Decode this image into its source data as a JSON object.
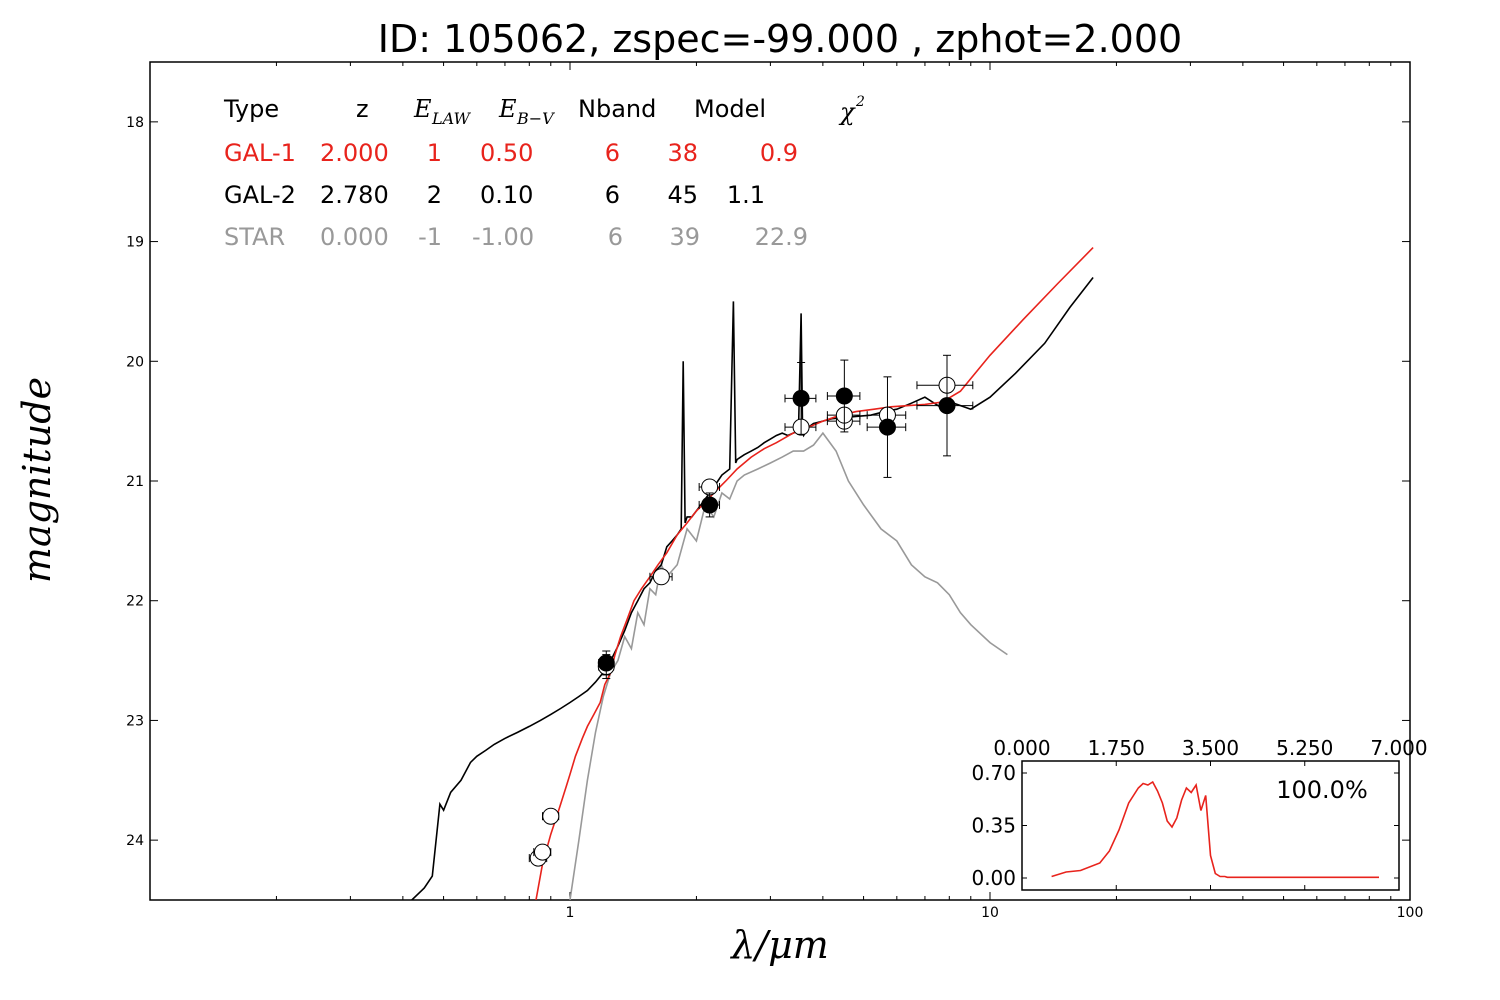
{
  "chart_data": [
    {
      "type": "line",
      "title": "ID:  105062, zspec=-99.000 , zphot=2.000",
      "xlabel": "λ/μm",
      "ylabel": "magnitude",
      "xscale": "log",
      "xlim": [
        0.1,
        100
      ],
      "ylim": [
        24.5,
        17.5
      ],
      "x_tick_labels": [
        "1",
        "10",
        "100"
      ],
      "y_tick_labels": [
        "18",
        "19",
        "20",
        "21",
        "22",
        "23",
        "24"
      ],
      "grid": false,
      "summary_table": {
        "headers": {
          "type": "Type",
          "z": "z",
          "elaw": "E",
          "elaw_sub": "LAW",
          "ebv": "E",
          "ebv_sub": "B−V",
          "nband": "Nband",
          "model": "Model",
          "chi": "χ",
          "chi_sup": "2"
        },
        "rows": [
          {
            "type": "GAL-1",
            "z": "2.000",
            "elaw": "1",
            "ebv": "0.50",
            "nband": "6",
            "model": "38",
            "chi2": "0.9",
            "color": "#e8231c"
          },
          {
            "type": "GAL-2",
            "z": "2.780",
            "elaw": "2",
            "ebv": "0.10",
            "nband": "6",
            "model": "45",
            "chi2": "1.1",
            "color": "#000000"
          },
          {
            "type": "STAR",
            "z": "0.000",
            "elaw": "-1",
            "ebv": "-1.00",
            "nband": "6",
            "model": "39",
            "chi2": "22.9",
            "color": "#999999"
          }
        ]
      },
      "series": [
        {
          "color": "#e8231c",
          "x": [
            0.83,
            0.86,
            0.9,
            0.94,
            0.98,
            1.0,
            1.03,
            1.07,
            1.1,
            1.14,
            1.18,
            1.21,
            1.25,
            1.28,
            1.32,
            1.37,
            1.42,
            1.48,
            1.55,
            1.62,
            1.7,
            1.8,
            1.9,
            2.0,
            2.1,
            2.2,
            2.35,
            2.5,
            2.7,
            2.9,
            3.1,
            3.4,
            3.7,
            4.0,
            4.4,
            4.8,
            5.3,
            5.8,
            6.4,
            7.0,
            7.7,
            8.5,
            10.0,
            12.0,
            14.5,
            17.6
          ],
          "y": [
            24.5,
            24.2,
            23.95,
            23.75,
            23.55,
            23.45,
            23.3,
            23.15,
            23.05,
            22.95,
            22.85,
            22.7,
            22.6,
            22.45,
            22.3,
            22.15,
            22.0,
            21.9,
            21.8,
            21.7,
            21.6,
            21.45,
            21.35,
            21.25,
            21.18,
            21.1,
            21.0,
            20.9,
            20.8,
            20.73,
            20.68,
            20.6,
            20.55,
            20.5,
            20.45,
            20.42,
            20.4,
            20.38,
            20.37,
            20.36,
            20.34,
            20.25,
            19.95,
            19.65,
            19.35,
            19.05
          ]
        },
        {
          "color": "#000000",
          "x": [
            0.42,
            0.45,
            0.47,
            0.49,
            0.5,
            0.52,
            0.55,
            0.58,
            0.6,
            0.63,
            0.66,
            0.7,
            0.75,
            0.8,
            0.85,
            0.9,
            0.95,
            1.0,
            1.05,
            1.1,
            1.15,
            1.2,
            1.25,
            1.3,
            1.35,
            1.4,
            1.45,
            1.5,
            1.55,
            1.6,
            1.65,
            1.7,
            1.75,
            1.8,
            1.84,
            1.86,
            1.88,
            1.9,
            1.95,
            2.0,
            2.05,
            2.1,
            2.2,
            2.3,
            2.4,
            2.45,
            2.48,
            2.5,
            2.55,
            2.6,
            2.7,
            2.8,
            2.9,
            3.0,
            3.1,
            3.2,
            3.3,
            3.4,
            3.5,
            3.55,
            3.58,
            3.6,
            3.65,
            3.7,
            3.8,
            4.0,
            4.2,
            4.5,
            4.8,
            5.2,
            5.6,
            6.0,
            6.5,
            7.0,
            7.6,
            8.2,
            9.0,
            10.0,
            11.5,
            13.5,
            15.5,
            17.6
          ],
          "y": [
            24.5,
            24.4,
            24.3,
            23.7,
            23.75,
            23.6,
            23.5,
            23.35,
            23.3,
            23.25,
            23.2,
            23.15,
            23.1,
            23.05,
            23.0,
            22.95,
            22.9,
            22.85,
            22.8,
            22.75,
            22.68,
            22.6,
            22.5,
            22.38,
            22.25,
            22.1,
            22.0,
            21.9,
            21.85,
            21.75,
            21.7,
            21.55,
            21.5,
            21.45,
            21.4,
            20.0,
            21.35,
            21.3,
            21.3,
            21.25,
            21.2,
            21.15,
            21.05,
            20.95,
            20.9,
            19.5,
            20.85,
            20.82,
            20.8,
            20.78,
            20.75,
            20.72,
            20.68,
            20.65,
            20.62,
            20.6,
            20.62,
            20.6,
            20.58,
            19.6,
            20.6,
            20.62,
            20.58,
            20.55,
            20.52,
            20.5,
            20.48,
            20.47,
            20.46,
            20.45,
            20.42,
            20.4,
            20.35,
            20.3,
            20.38,
            20.35,
            20.4,
            20.3,
            20.1,
            19.85,
            19.55,
            19.3
          ]
        },
        {
          "color": "#999999",
          "x": [
            1.0,
            1.05,
            1.1,
            1.15,
            1.2,
            1.25,
            1.3,
            1.35,
            1.4,
            1.45,
            1.5,
            1.55,
            1.6,
            1.65,
            1.7,
            1.8,
            1.9,
            2.0,
            2.1,
            2.2,
            2.3,
            2.4,
            2.5,
            2.6,
            2.8,
            3.0,
            3.2,
            3.4,
            3.6,
            3.8,
            4.0,
            4.3,
            4.6,
            5.0,
            5.5,
            6.0,
            6.5,
            7.0,
            7.5,
            8.0,
            8.5,
            9.0,
            10.0,
            11.0
          ],
          "y": [
            24.5,
            24.0,
            23.5,
            23.1,
            22.8,
            22.6,
            22.5,
            22.3,
            22.4,
            22.1,
            22.2,
            21.9,
            21.95,
            21.7,
            21.8,
            21.7,
            21.4,
            21.5,
            21.2,
            21.3,
            21.1,
            21.15,
            21.0,
            20.95,
            20.9,
            20.85,
            20.8,
            20.75,
            20.75,
            20.7,
            20.6,
            20.75,
            21.0,
            21.2,
            21.4,
            21.5,
            21.7,
            21.8,
            21.85,
            21.95,
            22.1,
            22.2,
            22.35,
            22.45
          ]
        }
      ],
      "observed_points": [
        {
          "x": 0.8,
          "y": 24.6,
          "xerr": 0.03,
          "yerr": 0.0,
          "style": "open"
        },
        {
          "x": 0.84,
          "y": 24.15,
          "xerr": 0.04,
          "yerr": 0.0,
          "style": "open"
        },
        {
          "x": 0.86,
          "y": 24.1,
          "xerr": 0.04,
          "yerr": 0.0,
          "style": "open"
        },
        {
          "x": 0.9,
          "y": 23.8,
          "xerr": 0.04,
          "yerr": 0.0,
          "style": "open"
        },
        {
          "x": 1.22,
          "y": 22.55,
          "xerr": 0.05,
          "yerr": 0.1,
          "style": "open"
        },
        {
          "x": 1.22,
          "y": 22.52,
          "xerr": 0.05,
          "yerr": 0.1,
          "style": "filled"
        },
        {
          "x": 1.65,
          "y": 21.8,
          "xerr": 0.1,
          "yerr": 0.0,
          "style": "open"
        },
        {
          "x": 2.15,
          "y": 21.05,
          "xerr": 0.12,
          "yerr": 0.0,
          "style": "open"
        },
        {
          "x": 2.15,
          "y": 21.2,
          "xerr": 0.12,
          "yerr": 0.1,
          "style": "filled"
        },
        {
          "x": 3.55,
          "y": 20.55,
          "xerr": 0.3,
          "yerr": 0.0,
          "style": "open"
        },
        {
          "x": 3.55,
          "y": 20.31,
          "xerr": 0.3,
          "yerr": 0.3,
          "style": "filled"
        },
        {
          "x": 4.5,
          "y": 20.5,
          "xerr": 0.4,
          "yerr": 0.0,
          "style": "open"
        },
        {
          "x": 4.5,
          "y": 20.45,
          "xerr": 0.4,
          "yerr": 0.0,
          "style": "open"
        },
        {
          "x": 4.5,
          "y": 20.29,
          "xerr": 0.4,
          "yerr": 0.3,
          "style": "filled"
        },
        {
          "x": 5.7,
          "y": 20.45,
          "xerr": 0.6,
          "yerr": 0.0,
          "style": "open"
        },
        {
          "x": 5.7,
          "y": 20.55,
          "xerr": 0.6,
          "yerr": 0.42,
          "style": "filled"
        },
        {
          "x": 7.9,
          "y": 20.2,
          "xerr": 1.2,
          "yerr": 0.0,
          "style": "open"
        },
        {
          "x": 7.9,
          "y": 20.37,
          "xerr": 1.2,
          "yerr": 0.42,
          "style": "filled"
        }
      ]
    },
    {
      "type": "line",
      "title": "",
      "xlim": [
        0,
        7
      ],
      "ylim": [
        0,
        0.7
      ],
      "x_tick_labels": [
        "0.000",
        "1.750",
        "3.500",
        "5.250",
        "7.000"
      ],
      "y_tick_labels": [
        "0.70",
        "0.35",
        "0.00"
      ],
      "annotation": "100.0%",
      "series": [
        {
          "color": "#e8231c",
          "x": [
            0.2,
            0.5,
            0.8,
            1.2,
            1.4,
            1.6,
            1.8,
            2.0,
            2.1,
            2.2,
            2.3,
            2.4,
            2.5,
            2.6,
            2.7,
            2.8,
            2.9,
            3.0,
            3.1,
            3.2,
            3.3,
            3.4,
            3.5,
            3.6,
            3.7,
            3.8,
            3.85,
            4.0,
            5.0,
            6.0,
            7.0
          ],
          "y": [
            0.01,
            0.04,
            0.05,
            0.1,
            0.18,
            0.32,
            0.5,
            0.6,
            0.63,
            0.62,
            0.64,
            0.58,
            0.5,
            0.38,
            0.34,
            0.4,
            0.52,
            0.6,
            0.57,
            0.62,
            0.45,
            0.55,
            0.15,
            0.03,
            0.01,
            0.01,
            0.005,
            0.005,
            0.005,
            0.005,
            0.005
          ]
        }
      ]
    }
  ]
}
